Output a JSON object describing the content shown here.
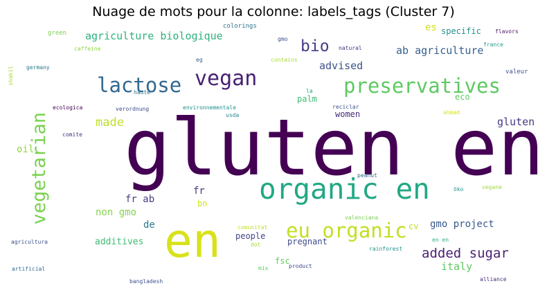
{
  "title": "Nuage de mots pour la colonne: labels_tags (Cluster 7)",
  "words": [
    {
      "text": "gluten en",
      "color": "#440154"
    },
    {
      "text": "en",
      "color": "#d8e219"
    },
    {
      "text": "organic en",
      "color": "#22a884"
    },
    {
      "text": "eu organic",
      "color": "#c2df23"
    },
    {
      "text": "vegan",
      "color": "#482173"
    },
    {
      "text": "lactose",
      "color": "#31688e"
    },
    {
      "text": "preservatives",
      "color": "#5ec962"
    },
    {
      "text": "vegetarian",
      "color": "#7ad151"
    },
    {
      "text": "bio",
      "color": "#433e85"
    },
    {
      "text": "agriculture biologique",
      "color": "#2cb17e"
    },
    {
      "text": "ab agriculture",
      "color": "#355f8d"
    },
    {
      "text": "advised",
      "color": "#3b528b"
    },
    {
      "text": "made",
      "color": "#bddf26"
    },
    {
      "text": "added sugar",
      "color": "#481f70"
    },
    {
      "text": "gluten",
      "color": "#443983"
    },
    {
      "text": "italy",
      "color": "#5ec962"
    },
    {
      "text": "gmo project",
      "color": "#38598c"
    },
    {
      "text": "non gmo",
      "color": "#84d44b"
    },
    {
      "text": "fr ab",
      "color": "#433e85"
    },
    {
      "text": "fr",
      "color": "#443983"
    },
    {
      "text": "de",
      "color": "#2a788e"
    },
    {
      "text": "additives",
      "color": "#3fbc73"
    },
    {
      "text": "people",
      "color": "#414487"
    },
    {
      "text": "pregnant",
      "color": "#3e4989"
    },
    {
      "text": "fsc",
      "color": "#65cb5e"
    },
    {
      "text": "es",
      "color": "#d2e21b"
    },
    {
      "text": "specific",
      "color": "#21918c"
    },
    {
      "text": "palm",
      "color": "#3aba76"
    },
    {
      "text": "women",
      "color": "#472d7b"
    },
    {
      "text": "eco",
      "color": "#5ec962"
    },
    {
      "text": "oil",
      "color": "#93d741"
    },
    {
      "text": "bn",
      "color": "#d0e11c"
    },
    {
      "text": "cv",
      "color": "#c0df25"
    },
    {
      "text": "green",
      "color": "#7ad151"
    },
    {
      "text": "colorings",
      "color": "#2c728e"
    },
    {
      "text": "gmo",
      "color": "#3d4e8a"
    },
    {
      "text": "flavors",
      "color": "#471365"
    },
    {
      "text": "caffeine",
      "color": "#8ed645"
    },
    {
      "text": "natural",
      "color": "#46327e"
    },
    {
      "text": "france",
      "color": "#1f9e89"
    },
    {
      "text": "germany",
      "color": "#2a788e"
    },
    {
      "text": "eg",
      "color": "#33638d"
    },
    {
      "text": "contains",
      "color": "#aadc32"
    },
    {
      "text": "valeur",
      "color": "#3b528b"
    },
    {
      "text": "haute",
      "color": "#2d708e"
    },
    {
      "text": "la",
      "color": "#1fa188"
    },
    {
      "text": "ecologica",
      "color": "#440154"
    },
    {
      "text": "verordnung",
      "color": "#3e4989"
    },
    {
      "text": "environnementale",
      "color": "#21918c"
    },
    {
      "text": "reciclar",
      "color": "#3b528b"
    },
    {
      "text": "usda",
      "color": "#26828e"
    },
    {
      "text": "ahmad",
      "color": "#d8e219"
    },
    {
      "text": "comite",
      "color": "#46327e"
    },
    {
      "text": "peanut",
      "color": "#31688e"
    },
    {
      "text": "öko",
      "color": "#21918c"
    },
    {
      "text": "vegane",
      "color": "#9fda3a"
    },
    {
      "text": "valenciana",
      "color": "#7ad151"
    },
    {
      "text": "comunitat",
      "color": "#c8e020"
    },
    {
      "text": "dot",
      "color": "#a5db36"
    },
    {
      "text": "en en",
      "color": "#2db27d"
    },
    {
      "text": "agricultura",
      "color": "#3b528b"
    },
    {
      "text": "rainforest",
      "color": "#21918c"
    },
    {
      "text": "mix",
      "color": "#5ec962"
    },
    {
      "text": "product",
      "color": "#3e4989"
    },
    {
      "text": "artificial",
      "color": "#31688e"
    },
    {
      "text": "alliance",
      "color": "#472d7b"
    },
    {
      "text": "bangladesh",
      "color": "#3b528b"
    },
    {
      "text": "shakil",
      "color": "#aadc32"
    }
  ]
}
